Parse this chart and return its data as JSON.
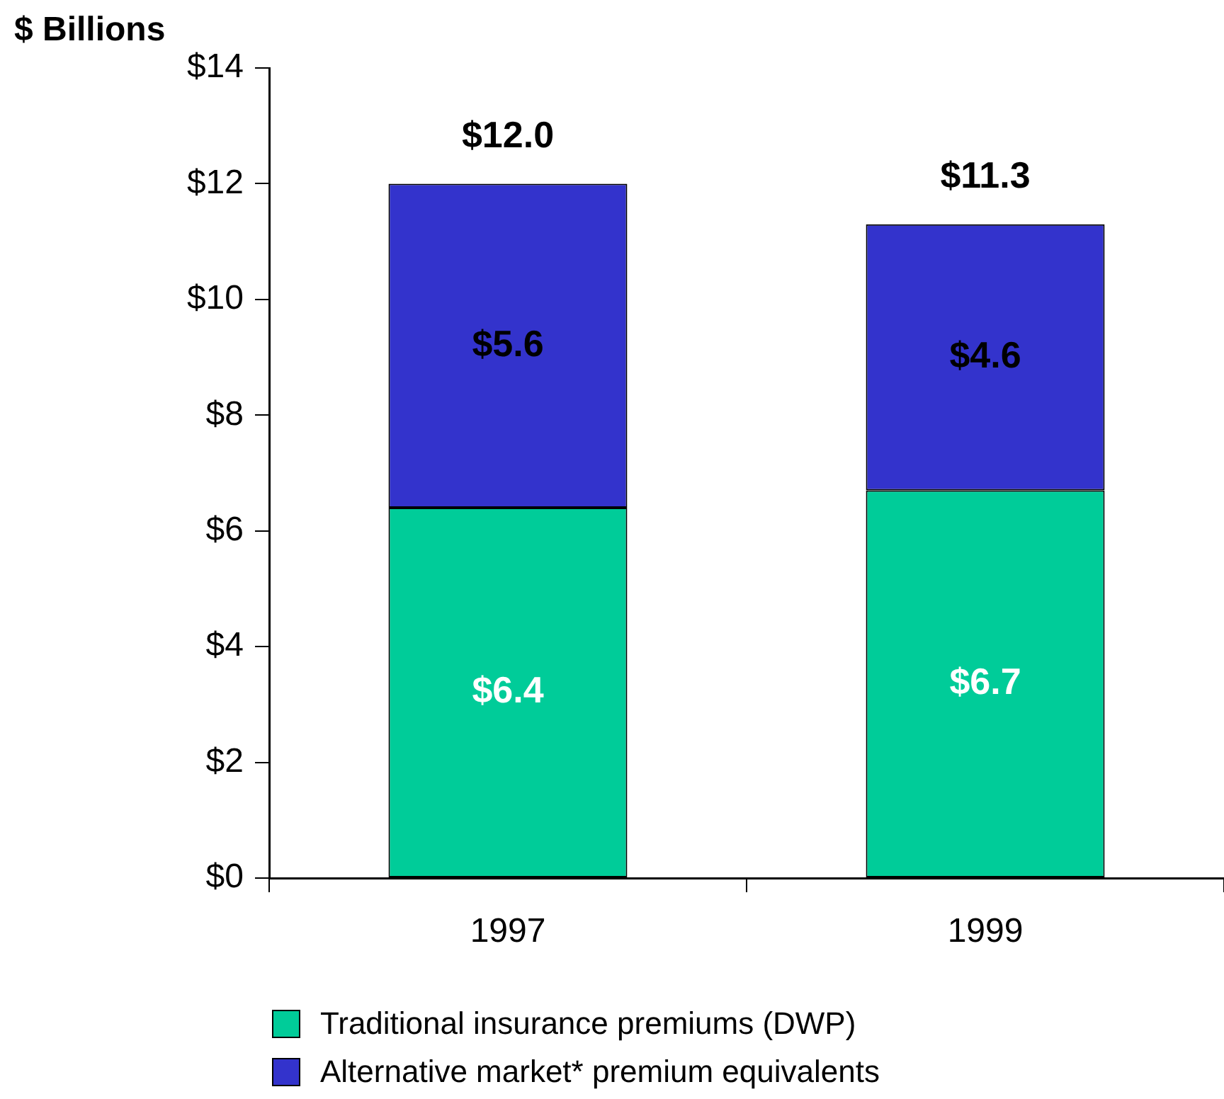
{
  "chart_data": {
    "type": "bar",
    "stacked": true,
    "ylabel": "$ Billions",
    "categories": [
      "1997",
      "1999"
    ],
    "series": [
      {
        "name": "Traditional insurance premiums (DWP)",
        "color": "#00cc99",
        "values": [
          6.4,
          6.7
        ],
        "value_labels": [
          "$6.4",
          "$6.7"
        ]
      },
      {
        "name": "Alternative market* premium equivalents",
        "color": "#3333cc",
        "values": [
          5.6,
          4.6
        ],
        "value_labels": [
          "$5.6",
          "$4.6"
        ]
      }
    ],
    "totals": [
      "$12.0",
      "$11.3"
    ],
    "ylim": [
      0,
      14
    ],
    "yticks": [
      {
        "value": 0,
        "label": "$0"
      },
      {
        "value": 2,
        "label": "$2"
      },
      {
        "value": 4,
        "label": "$4"
      },
      {
        "value": 6,
        "label": "$6"
      },
      {
        "value": 8,
        "label": "$8"
      },
      {
        "value": 10,
        "label": "$10"
      },
      {
        "value": 12,
        "label": "$12"
      },
      {
        "value": 14,
        "label": "$14"
      }
    ],
    "grid": false,
    "legend": "bottom"
  }
}
